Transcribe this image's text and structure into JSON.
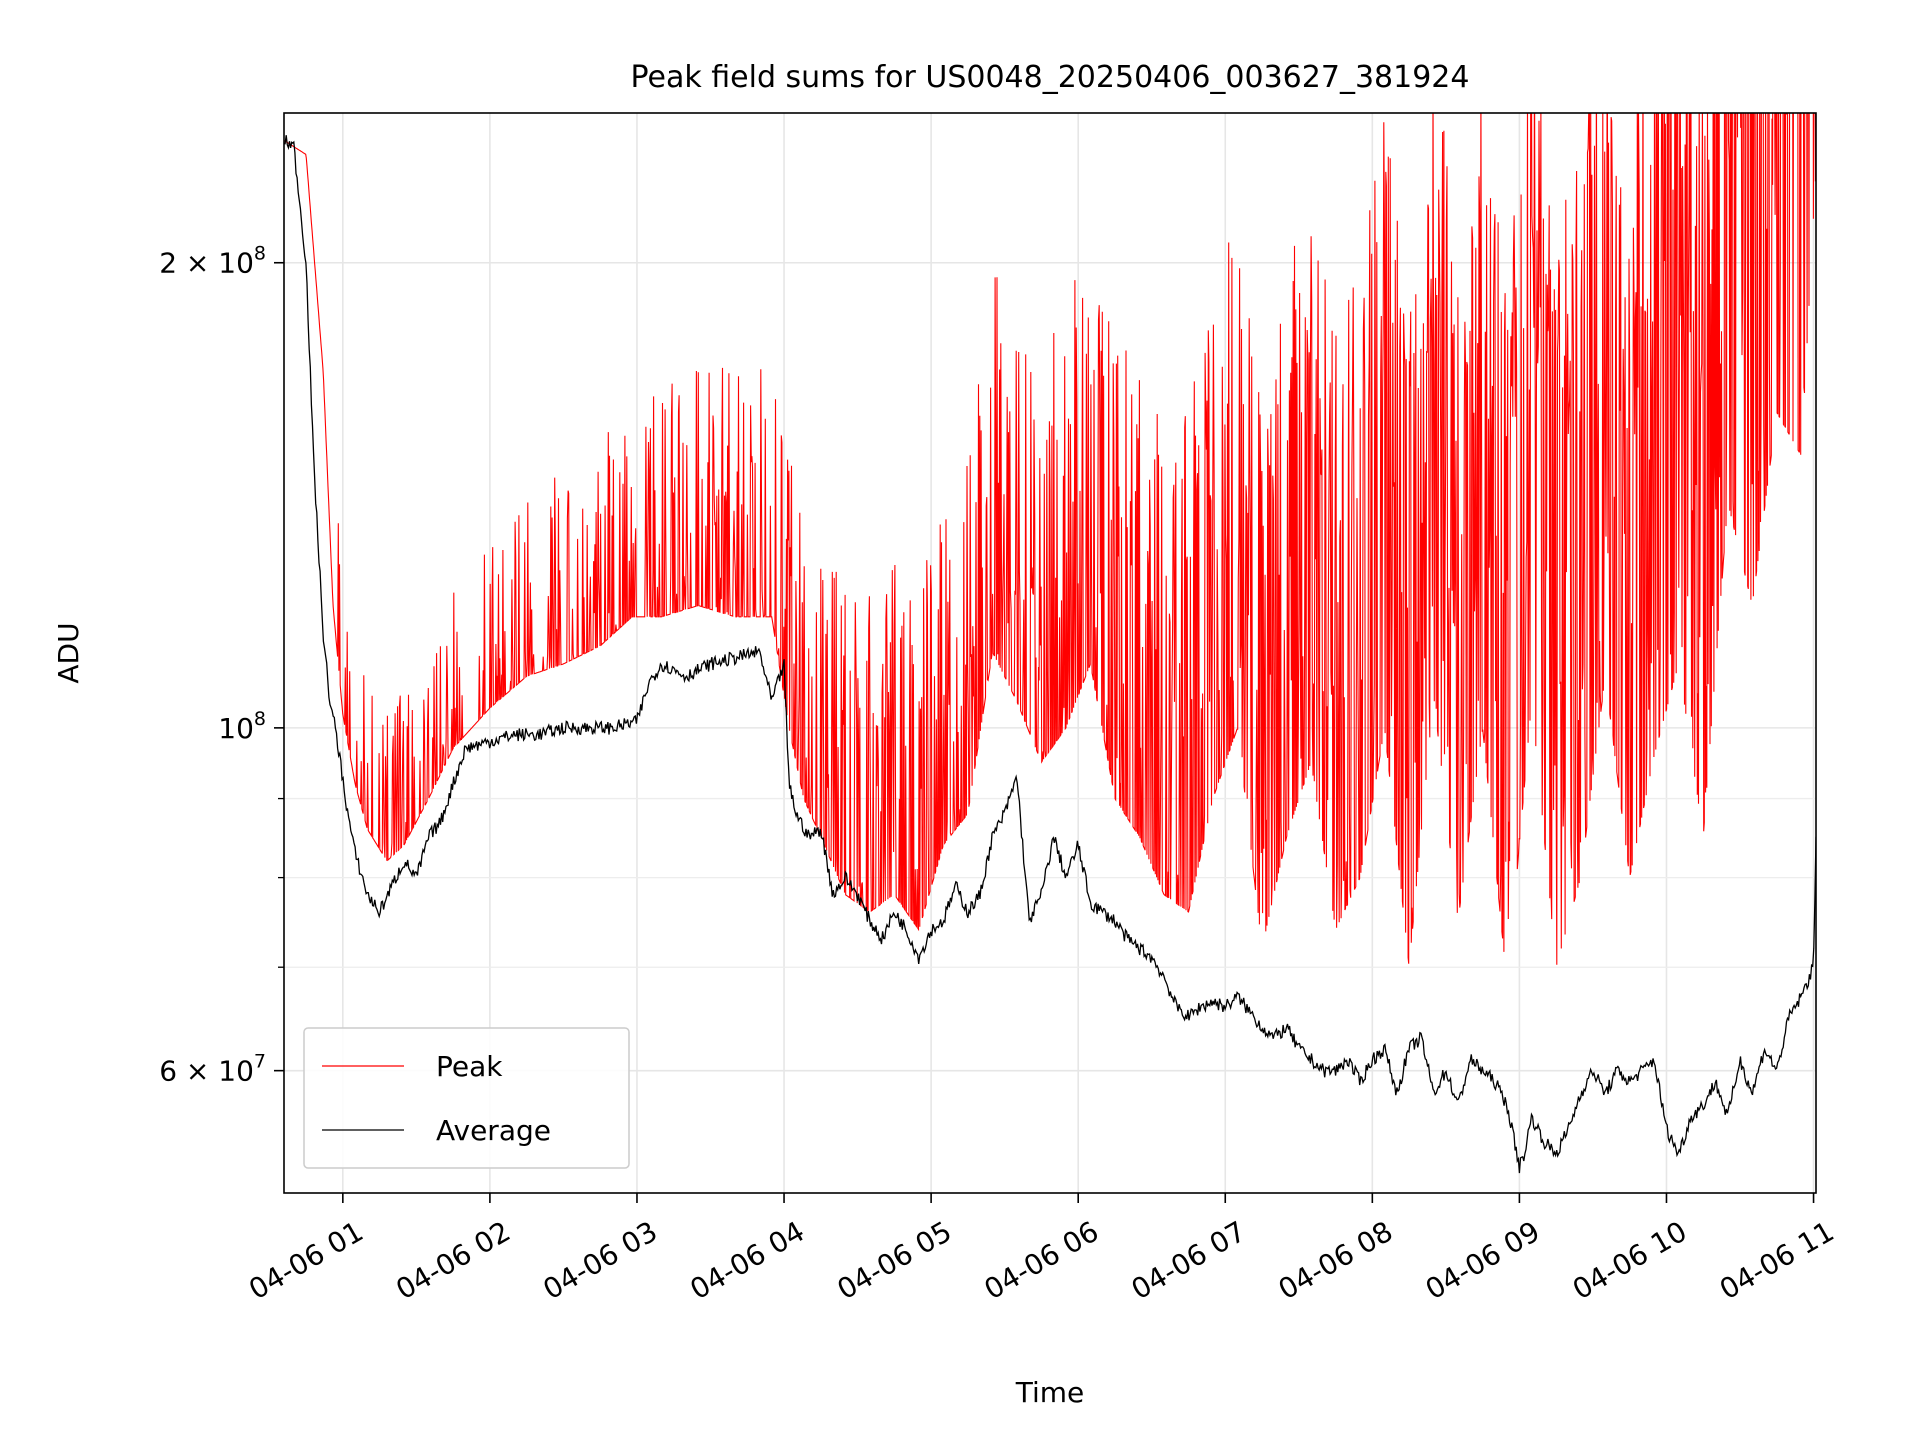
{
  "chart_data": {
    "type": "line",
    "title": "Peak field sums for US0048_20250406_003627_381924",
    "xlabel": "Time",
    "ylabel": "ADU",
    "x_range": [
      "04-06 00:36",
      "04-06 11:01"
    ],
    "ylim": [
      50000000,
      250000000
    ],
    "y_scale": "log",
    "grid": true,
    "legend_position": "lower-left",
    "x_ticks": [
      "04-06 01",
      "04-06 02",
      "04-06 03",
      "04-06 04",
      "04-06 05",
      "04-06 06",
      "04-06 07",
      "04-06 08",
      "04-06 09",
      "04-06 10",
      "04-06 11"
    ],
    "y_ticks": [
      {
        "value": 200000000,
        "mant": "2",
        "sep": "×",
        "base": "10",
        "exp": "8"
      },
      {
        "value": 100000000,
        "mant": "",
        "sep": "",
        "base": "10",
        "exp": "8"
      },
      {
        "value": 60000000,
        "mant": "6",
        "sep": "×",
        "base": "10",
        "exp": "7"
      }
    ],
    "y_minor_ticks": [
      70000000,
      80000000,
      90000000
    ],
    "series": [
      {
        "name": "Peak",
        "color": "#ff0000",
        "x": [
          "00:36",
          "00:45",
          "00:52",
          "00:56",
          "01:00",
          "01:05",
          "01:10",
          "01:18",
          "01:25",
          "01:35",
          "01:45",
          "02:00",
          "02:15",
          "02:30",
          "02:45",
          "02:58",
          "03:10",
          "03:25",
          "03:40",
          "03:55",
          "04:02",
          "04:08",
          "04:15",
          "04:25",
          "04:35",
          "04:45",
          "04:55",
          "05:05",
          "05:15",
          "05:25",
          "05:35",
          "05:45",
          "05:55",
          "06:05",
          "06:15",
          "06:25",
          "06:35",
          "06:45",
          "06:55",
          "07:05",
          "07:15",
          "07:25",
          "07:35",
          "07:45",
          "07:55",
          "08:05",
          "08:15",
          "08:25",
          "08:35",
          "08:45",
          "08:55",
          "09:05",
          "09:15",
          "09:25",
          "09:35",
          "09:45",
          "09:55",
          "10:05",
          "10:15",
          "10:25",
          "10:35",
          "10:45",
          "10:55",
          "11:01"
        ],
        "y": [
          240000000,
          235000000,
          170000000,
          120000000,
          102000000,
          92000000,
          86000000,
          82000000,
          84000000,
          90000000,
          97000000,
          103000000,
          108000000,
          110000000,
          113000000,
          118000000,
          118000000,
          120000000,
          118000000,
          118000000,
          100000000,
          90000000,
          85000000,
          78000000,
          76000000,
          78000000,
          74000000,
          84000000,
          88000000,
          112000000,
          104000000,
          95000000,
          100000000,
          110000000,
          90000000,
          85000000,
          78000000,
          76000000,
          90000000,
          100000000,
          72000000,
          85000000,
          95000000,
          74000000,
          80000000,
          100000000,
          70000000,
          105000000,
          75000000,
          100000000,
          68000000,
          104000000,
          70000000,
          80000000,
          108000000,
          80000000,
          96000000,
          110000000,
          85000000,
          140000000,
          120000000,
          160000000,
          150000000,
          230000000
        ]
      },
      {
        "name": "Average",
        "color": "#000000",
        "x": [
          "00:36",
          "00:40",
          "00:45",
          "00:48",
          "00:52",
          "00:55",
          "00:57",
          "00:59",
          "01:02",
          "01:05",
          "01:10",
          "01:15",
          "01:20",
          "01:25",
          "01:30",
          "01:35",
          "01:40",
          "01:45",
          "01:50",
          "02:00",
          "02:10",
          "02:20",
          "02:30",
          "02:40",
          "02:50",
          "03:00",
          "03:05",
          "03:10",
          "03:20",
          "03:30",
          "03:40",
          "03:50",
          "03:55",
          "04:00",
          "04:02",
          "04:05",
          "04:10",
          "04:15",
          "04:20",
          "04:25",
          "04:30",
          "04:35",
          "04:40",
          "04:45",
          "04:50",
          "04:55",
          "05:00",
          "05:05",
          "05:10",
          "05:15",
          "05:20",
          "05:25",
          "05:30",
          "05:35",
          "05:40",
          "05:45",
          "05:50",
          "05:55",
          "06:00",
          "06:05",
          "06:10",
          "06:15",
          "06:20",
          "06:25",
          "06:30",
          "06:35",
          "06:40",
          "06:45",
          "06:50",
          "06:55",
          "07:00",
          "07:05",
          "07:10",
          "07:15",
          "07:20",
          "07:25",
          "07:30",
          "07:35",
          "07:40",
          "07:45",
          "07:50",
          "07:55",
          "08:00",
          "08:05",
          "08:10",
          "08:15",
          "08:20",
          "08:25",
          "08:30",
          "08:35",
          "08:40",
          "08:45",
          "08:50",
          "08:55",
          "09:00",
          "09:02",
          "09:05",
          "09:10",
          "09:15",
          "09:20",
          "09:25",
          "09:30",
          "09:35",
          "09:40",
          "09:45",
          "09:50",
          "09:55",
          "10:00",
          "10:05",
          "10:10",
          "10:15",
          "10:20",
          "10:25",
          "10:30",
          "10:35",
          "10:40",
          "10:45",
          "10:50",
          "10:55",
          "11:00",
          "11:01"
        ],
        "y": [
          240000000,
          238000000,
          200000000,
          150000000,
          115000000,
          103000000,
          100000000,
          95000000,
          88000000,
          83000000,
          78000000,
          76000000,
          79000000,
          82000000,
          80000000,
          85000000,
          87000000,
          92000000,
          97000000,
          98000000,
          99000000,
          99000000,
          100000000,
          100000000,
          100000000,
          101000000,
          107000000,
          110000000,
          108000000,
          110000000,
          111000000,
          112000000,
          104000000,
          110000000,
          92000000,
          88000000,
          85000000,
          86000000,
          78000000,
          80000000,
          78000000,
          75000000,
          73000000,
          76000000,
          74000000,
          71000000,
          74000000,
          75000000,
          79000000,
          76000000,
          78000000,
          85000000,
          88000000,
          93000000,
          75000000,
          78000000,
          85000000,
          80000000,
          84000000,
          77000000,
          76000000,
          75000000,
          73000000,
          72000000,
          71000000,
          69000000,
          66000000,
          65000000,
          66000000,
          66500000,
          66000000,
          67000000,
          65500000,
          64000000,
          63000000,
          64000000,
          62000000,
          61000000,
          60000000,
          60000000,
          61000000,
          59000000,
          61000000,
          62000000,
          58000000,
          62000000,
          63000000,
          58000000,
          60000000,
          57000000,
          61000000,
          60000000,
          59000000,
          57000000,
          52000000,
          53000000,
          56000000,
          54000000,
          53000000,
          55000000,
          58000000,
          60000000,
          58000000,
          60000000,
          59000000,
          60000000,
          61000000,
          55000000,
          53000000,
          56000000,
          57000000,
          59000000,
          56000000,
          61000000,
          58000000,
          62000000,
          60000000,
          65000000,
          67000000,
          70000000,
          85000000
        ]
      }
    ]
  }
}
